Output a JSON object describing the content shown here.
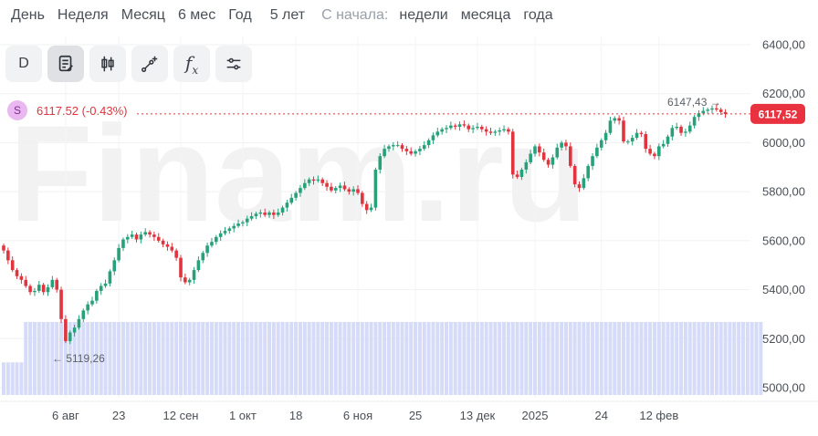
{
  "periods": [
    "День",
    "Неделя",
    "Месяц",
    "6 мес",
    "Год",
    "5 лет"
  ],
  "since_label": "С начала:",
  "since_items": [
    "недели",
    "месяца",
    "года"
  ],
  "toolbar": {
    "d_label": "D",
    "tools": [
      "notes-icon",
      "candles-icon",
      "draw-line-icon",
      "function-icon",
      "settings-sliders-icon"
    ],
    "fx_label": "f"
  },
  "legend": {
    "symbol": "S",
    "value_text": "6117.52 (-0.43%)"
  },
  "watermark": "Finam.ru",
  "colors": {
    "up": "#26a17a",
    "down": "#e0353f",
    "volume": "#d6dbf7",
    "price_tag": "#e8323f"
  },
  "chart_data": {
    "type": "candlestick",
    "ylim": [
      4950,
      6480
    ],
    "y_ticks": [
      "6400,00",
      "6200,00",
      "6000,00",
      "5800,00",
      "5600,00",
      "5400,00",
      "5200,00",
      "5000,00"
    ],
    "y_tick_values": [
      6400,
      6200,
      6000,
      5800,
      5600,
      5400,
      5200,
      5000
    ],
    "x_labels": [
      "6 авг",
      "23",
      "12 сен",
      "1 окт",
      "18",
      "6 ноя",
      "25",
      "13 дек",
      "2025",
      "24",
      "12 фев"
    ],
    "x_label_index": [
      14,
      26,
      40,
      54,
      66,
      80,
      93,
      107,
      120,
      135,
      148
    ],
    "last_price": 6117.52,
    "last_price_label": "6117,52",
    "annotation_max": "6147,43",
    "annotation_max_value": 6147.43,
    "annotation_min": "5119,26",
    "annotation_min_value": 5119.26,
    "closes": [
      5560,
      5520,
      5480,
      5455,
      5440,
      5415,
      5390,
      5395,
      5420,
      5390,
      5410,
      5440,
      5400,
      5280,
      5190,
      5225,
      5245,
      5280,
      5315,
      5340,
      5355,
      5395,
      5415,
      5425,
      5475,
      5520,
      5570,
      5605,
      5615,
      5625,
      5605,
      5625,
      5635,
      5625,
      5615,
      5600,
      5585,
      5575,
      5560,
      5530,
      5450,
      5430,
      5440,
      5480,
      5520,
      5550,
      5580,
      5595,
      5615,
      5630,
      5640,
      5650,
      5660,
      5670,
      5675,
      5690,
      5700,
      5710,
      5715,
      5705,
      5715,
      5705,
      5715,
      5735,
      5755,
      5775,
      5795,
      5815,
      5835,
      5850,
      5845,
      5850,
      5835,
      5820,
      5805,
      5815,
      5825,
      5810,
      5800,
      5810,
      5795,
      5750,
      5725,
      5735,
      5890,
      5945,
      5975,
      5985,
      5990,
      5990,
      5975,
      5965,
      5955,
      5965,
      5975,
      5990,
      6010,
      6030,
      6045,
      6055,
      6060,
      6070,
      6065,
      6075,
      6070,
      6055,
      6060,
      6065,
      6055,
      6045,
      6040,
      6045,
      6050,
      6055,
      6045,
      5870,
      5860,
      5890,
      5920,
      5955,
      5985,
      5960,
      5930,
      5910,
      5940,
      5980,
      6000,
      5985,
      5905,
      5830,
      5815,
      5855,
      5905,
      5945,
      5980,
      6010,
      6040,
      6090,
      6100,
      6090,
      6005,
      6005,
      6020,
      6040,
      6035,
      5975,
      5955,
      5945,
      5985,
      5995,
      6025,
      6060,
      6065,
      6040,
      6045,
      6070,
      6105,
      6120,
      6130,
      6135,
      6140,
      6135,
      6125,
      6117.52
    ],
    "volumes": [
      0.25,
      0.25,
      0.25,
      0.25,
      0.25,
      0.56,
      0.56,
      0.56,
      0.56,
      0.56,
      0.56,
      0.56,
      0.56,
      0.56,
      0.56,
      0.56,
      0.56,
      0.56,
      0.56,
      0.56,
      0.56,
      0.56,
      0.56,
      0.56,
      0.56,
      0.56,
      0.56,
      0.56,
      0.56,
      0.56,
      0.56,
      0.56,
      0.56,
      0.56,
      0.56,
      0.56,
      0.56,
      0.56,
      0.56,
      0.56,
      0.56,
      0.56,
      0.56,
      0.56,
      0.56,
      0.56,
      0.56,
      0.56,
      0.56,
      0.56,
      0.56,
      0.56,
      0.56,
      0.56,
      0.56,
      0.56,
      0.56,
      0.56,
      0.56,
      0.56,
      0.56,
      0.56,
      0.56,
      0.56,
      0.56,
      0.56,
      0.56,
      0.56,
      0.56,
      0.56,
      0.56,
      0.56,
      0.56,
      0.56,
      0.56,
      0.56,
      0.56,
      0.56,
      0.56,
      0.56,
      0.56,
      0.56,
      0.56,
      0.56,
      0.56,
      0.56,
      0.56,
      0.56,
      0.56,
      0.56,
      0.56,
      0.56,
      0.56,
      0.56,
      0.56,
      0.56,
      0.56,
      0.56,
      0.56,
      0.56,
      0.56,
      0.56,
      0.56,
      0.56,
      0.56,
      0.56,
      0.56,
      0.56,
      0.56,
      0.56,
      0.56,
      0.56,
      0.56,
      0.56,
      0.56,
      0.56,
      0.56,
      0.56,
      0.56,
      0.56,
      0.56,
      0.56,
      0.56,
      0.56,
      0.56,
      0.56,
      0.56,
      0.56,
      0.56,
      0.56,
      0.56,
      0.56,
      0.56,
      0.56,
      0.56,
      0.56,
      0.56,
      0.56,
      0.56,
      0.56,
      0.56,
      0.56,
      0.56,
      0.56,
      0.56,
      0.56,
      0.56,
      0.56,
      0.56,
      0.56,
      0.56,
      0.56,
      0.56,
      0.56,
      0.56,
      0.56,
      0.56,
      0.56,
      0.56,
      0.56,
      0.56,
      0.56,
      0.56,
      0.56,
      0.56,
      0.56,
      0.56,
      0.56,
      0.56,
      0.56,
      0.56,
      0.56
    ]
  }
}
